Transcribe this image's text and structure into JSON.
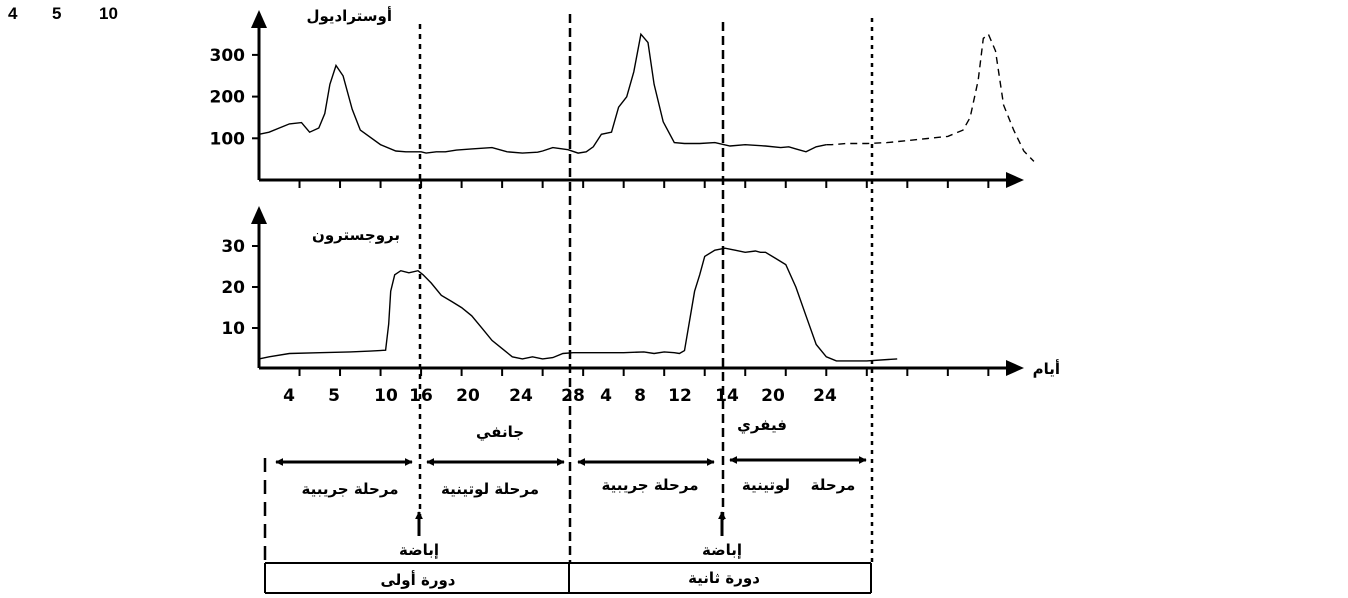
{
  "corner_numbers": [
    "4",
    "5",
    "10"
  ],
  "chart_data": [
    {
      "type": "line",
      "title": "أوستراديول",
      "yticks": [
        "100",
        "200",
        "300"
      ],
      "ytick_values": [
        100,
        200,
        300
      ],
      "ylim": [
        0,
        350
      ],
      "series": [
        {
          "name": "أوستراديول",
          "x": [
            0.0,
            1.0,
            2.0,
            3.0,
            4.2,
            5.0,
            5.9,
            6.5,
            7.0,
            7.6,
            8.3,
            9.2,
            10.0,
            12.0,
            13.5,
            14.5,
            16.0,
            16.5,
            17.5,
            18.4,
            19.5,
            21.0,
            23.0,
            24.5,
            26.0,
            27.5,
            28.0,
            29.0,
            30.5,
            31.5,
            32.3,
            33.0,
            33.8,
            34.8,
            35.5,
            36.3,
            37.0,
            37.7,
            38.4,
            39.0,
            39.9,
            41.0,
            42.0,
            43.5,
            45.0,
            46.5,
            48.0,
            50.0,
            51.5,
            52.3,
            53.0,
            54.0,
            55.0,
            56.0,
            56.5,
            58.0,
            60.0,
            62.0,
            64.0,
            66.0,
            68.0,
            69.5,
            70.2,
            71.0,
            71.5,
            72.0,
            72.7,
            73.5,
            74.5,
            75.5,
            76.5
          ],
          "values": [
            100,
            105,
            115,
            125,
            128,
            105,
            115,
            150,
            220,
            265,
            240,
            160,
            110,
            75,
            60,
            58,
            58,
            55,
            58,
            58,
            62,
            65,
            68,
            58,
            55,
            57,
            60,
            68,
            63,
            55,
            58,
            70,
            100,
            105,
            165,
            190,
            250,
            340,
            320,
            220,
            130,
            80,
            78,
            78,
            80,
            72,
            75,
            72,
            68,
            70,
            65,
            58,
            70,
            75,
            75,
            78,
            78,
            80,
            85,
            90,
            95,
            110,
            140,
            230,
            330,
            340,
            300,
            170,
            110,
            60,
            35
          ],
          "dashed_from_x": 56.0
        }
      ]
    },
    {
      "type": "line",
      "title": "بروجسترون",
      "xlabel": "أيام",
      "xticks": [
        "4",
        "5",
        "10",
        "16",
        "20",
        "24",
        "28",
        "4",
        "8",
        "12",
        "14",
        "20",
        "24"
      ],
      "xtick_positions": [
        4,
        8,
        12,
        16,
        20,
        24,
        28,
        32,
        36,
        40,
        44,
        48,
        52
      ],
      "yticks": [
        "10",
        "20",
        "30"
      ],
      "ytick_values": [
        10,
        20,
        30
      ],
      "ylim": [
        0,
        38
      ],
      "series": [
        {
          "name": "بروجسترون",
          "x": [
            0.0,
            1.0,
            3.0,
            6.0,
            9.0,
            11.0,
            12.5,
            12.8,
            13.0,
            13.4,
            14.0,
            14.8,
            15.7,
            16.2,
            17.0,
            18.0,
            19.0,
            20.0,
            21.0,
            22.0,
            23.0,
            24.0,
            25.0,
            26.0,
            27.0,
            28.0,
            29.0,
            30.0,
            31.0,
            32.0,
            34.0,
            36.0,
            38.0,
            39.0,
            40.0,
            41.0,
            41.5,
            42.0,
            43.0,
            43.5,
            44.0,
            45.0,
            46.0,
            47.0,
            48.0,
            49.0,
            49.5,
            50.0,
            51.0,
            52.0,
            53.0,
            54.0,
            55.0,
            56.0,
            57.0,
            60.0,
            63.0
          ],
          "values": [
            1.5,
            2.0,
            2.8,
            3.0,
            3.2,
            3.4,
            3.6,
            10.0,
            18.0,
            22.0,
            23.0,
            22.5,
            23.0,
            22.0,
            20.0,
            17.0,
            15.5,
            14.0,
            12.0,
            9.0,
            6.0,
            4.0,
            2.0,
            1.5,
            2.0,
            1.5,
            1.8,
            2.8,
            3.0,
            3.0,
            3.0,
            3.0,
            3.2,
            2.8,
            3.2,
            3.0,
            2.8,
            3.5,
            18.0,
            22.0,
            26.5,
            28.0,
            28.5,
            28.0,
            27.5,
            27.8,
            27.5,
            27.5,
            26.0,
            24.5,
            19.0,
            12.0,
            5.0,
            2.0,
            1.0,
            1.0,
            1.5
          ]
        }
      ]
    }
  ],
  "annotations": {
    "month_1": "جانفي",
    "month_2": "فيفري",
    "phase_follicular_1": "مرحلة جريبية",
    "phase_luteal_1": "مرحلة لوتينية",
    "phase_follicular_2": "مرحلة جريبية",
    "phase_luteal_2_a": "لوتينية",
    "phase_luteal_2_b": "مرحلة",
    "ovulation_1": "إباضة",
    "ovulation_2": "إباضة",
    "cycle_1": "دورة أولى",
    "cycle_2": "دورة ثانية"
  }
}
